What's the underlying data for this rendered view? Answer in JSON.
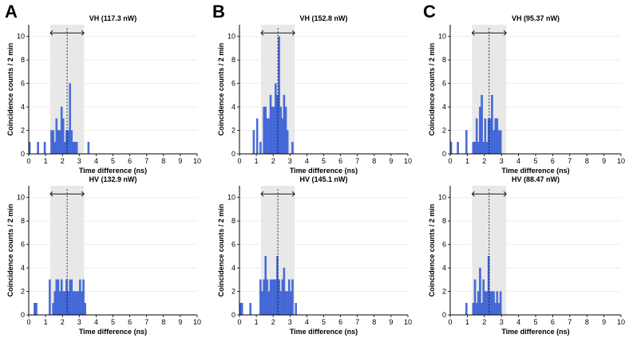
{
  "panel_letters": [
    "A",
    "B",
    "C"
  ],
  "colors": {
    "bar_fill": "#4a6fdc",
    "bar_stroke": "#2f55c8",
    "shade": "#e8e8e8",
    "grid": "#eeeeee",
    "axis": "#000000"
  },
  "chart_data": [
    {
      "type": "bar",
      "panel": "A",
      "title": "VH (117.3 nW)",
      "xlabel": "Time difference (ns)",
      "ylabel": "Coincidence counts / 2 min",
      "xlim": [
        0,
        10
      ],
      "ylim": [
        0,
        11
      ],
      "xticks": [
        "0",
        "1",
        "2",
        "3",
        "4",
        "5",
        "6",
        "7",
        "8",
        "9",
        "10"
      ],
      "yticks": [
        "0",
        "2",
        "4",
        "6",
        "8",
        "10"
      ],
      "bin_width": 0.1,
      "shaded_region": [
        1.28,
        3.28
      ],
      "mean_line": 2.28,
      "bins": [
        0.0,
        0.5,
        0.9,
        1.3,
        1.4,
        1.5,
        1.6,
        1.7,
        1.8,
        1.9,
        2.0,
        2.1,
        2.2,
        2.3,
        2.4,
        2.5,
        2.6,
        2.7,
        2.8,
        3.5
      ],
      "values": [
        1,
        1,
        1,
        2,
        2,
        1,
        3,
        2,
        2,
        4,
        3,
        1,
        2,
        2,
        6,
        2,
        1,
        1,
        1,
        1
      ]
    },
    {
      "type": "bar",
      "panel": "B",
      "title": "VH (152.8 nW)",
      "xlabel": "Time difference (ns)",
      "ylabel": "Coincidence counts / 2 min",
      "xlim": [
        0,
        10
      ],
      "ylim": [
        0,
        11
      ],
      "xticks": [
        "0",
        "1",
        "2",
        "3",
        "4",
        "5",
        "6",
        "7",
        "8",
        "9",
        "10"
      ],
      "yticks": [
        "0",
        "2",
        "4",
        "6",
        "8",
        "10"
      ],
      "bin_width": 0.1,
      "shaded_region": [
        1.28,
        3.28
      ],
      "mean_line": 2.28,
      "bins": [
        0.8,
        1.0,
        1.2,
        1.4,
        1.5,
        1.6,
        1.7,
        1.8,
        1.9,
        2.0,
        2.1,
        2.2,
        2.3,
        2.4,
        2.5,
        2.6,
        2.7,
        2.8,
        3.1
      ],
      "values": [
        2,
        3,
        1,
        4,
        4,
        3,
        3,
        5,
        4,
        4,
        6,
        5,
        10,
        4,
        3,
        5,
        4,
        2,
        1
      ]
    },
    {
      "type": "bar",
      "panel": "C",
      "title": "VH (95.37 nW)",
      "xlabel": "Time difference (ns)",
      "ylabel": "Coincidence counts / 2 min",
      "xlim": [
        0,
        10
      ],
      "ylim": [
        0,
        11
      ],
      "xticks": [
        "0",
        "1",
        "2",
        "3",
        "4",
        "5",
        "6",
        "7",
        "8",
        "9",
        "10"
      ],
      "yticks": [
        "0",
        "2",
        "4",
        "6",
        "8",
        "10"
      ],
      "bin_width": 0.1,
      "shaded_region": [
        1.28,
        3.28
      ],
      "mean_line": 2.28,
      "bins": [
        0.0,
        0.4,
        0.9,
        1.3,
        1.4,
        1.5,
        1.6,
        1.7,
        1.8,
        1.9,
        2.0,
        2.1,
        2.2,
        2.3,
        2.4,
        2.5,
        2.6,
        2.7,
        2.8,
        2.9
      ],
      "values": [
        1,
        1,
        2,
        1,
        1,
        3,
        1,
        4,
        5,
        1,
        3,
        1,
        3,
        3,
        5,
        2,
        3,
        3,
        2,
        2
      ]
    },
    {
      "type": "bar",
      "panel": "A",
      "title": "HV (132.9 nW)",
      "xlabel": "Time difference (ns)",
      "ylabel": "Coincidence counts / 2 min",
      "xlim": [
        0,
        10
      ],
      "ylim": [
        0,
        11
      ],
      "xticks": [
        "0",
        "1",
        "2",
        "3",
        "4",
        "5",
        "6",
        "7",
        "8",
        "9",
        "10"
      ],
      "yticks": [
        "0",
        "2",
        "4",
        "6",
        "8",
        "10"
      ],
      "bin_width": 0.1,
      "shaded_region": [
        1.28,
        3.28
      ],
      "mean_line": 2.28,
      "bins": [
        0.3,
        0.4,
        1.2,
        1.4,
        1.5,
        1.6,
        1.7,
        1.8,
        1.9,
        2.0,
        2.1,
        2.2,
        2.3,
        2.4,
        2.5,
        2.6,
        2.7,
        2.8,
        2.9,
        3.0,
        3.1,
        3.2,
        3.3
      ],
      "values": [
        1,
        1,
        3,
        1,
        2,
        3,
        3,
        2,
        3,
        2,
        2,
        3,
        2,
        3,
        3,
        2,
        2,
        2,
        2,
        3,
        2,
        3,
        1
      ]
    },
    {
      "type": "bar",
      "panel": "B",
      "title": "HV (145.1 nW)",
      "xlabel": "Time difference (ns)",
      "ylabel": "Coincidence counts / 2 min",
      "xlim": [
        0,
        10
      ],
      "ylim": [
        0,
        11
      ],
      "xticks": [
        "0",
        "1",
        "2",
        "3",
        "4",
        "5",
        "6",
        "7",
        "8",
        "9",
        "10"
      ],
      "yticks": [
        "0",
        "2",
        "4",
        "6",
        "8",
        "10"
      ],
      "bin_width": 0.1,
      "shaded_region": [
        1.28,
        3.28
      ],
      "mean_line": 2.28,
      "bins": [
        0.0,
        0.1,
        0.6,
        1.2,
        1.3,
        1.4,
        1.5,
        1.6,
        1.7,
        1.8,
        1.9,
        2.0,
        2.1,
        2.2,
        2.3,
        2.4,
        2.5,
        2.6,
        2.7,
        2.8,
        2.9,
        3.0,
        3.1,
        3.3
      ],
      "values": [
        1,
        1,
        1,
        3,
        2,
        3,
        5,
        3,
        2,
        3,
        3,
        3,
        3,
        5,
        3,
        2,
        3,
        4,
        2,
        2,
        3,
        2,
        3,
        1
      ]
    },
    {
      "type": "bar",
      "panel": "C",
      "title": "HV (88.47 nW)",
      "xlabel": "Time difference (ns)",
      "ylabel": "Coincidence counts / 2 min",
      "xlim": [
        0,
        10
      ],
      "ylim": [
        0,
        11
      ],
      "xticks": [
        "0",
        "1",
        "2",
        "3",
        "4",
        "5",
        "6",
        "7",
        "8",
        "9",
        "10"
      ],
      "yticks": [
        "0",
        "2",
        "4",
        "6",
        "8",
        "10"
      ],
      "bin_width": 0.1,
      "shaded_region": [
        1.28,
        3.28
      ],
      "mean_line": 2.28,
      "bins": [
        0.9,
        1.3,
        1.4,
        1.5,
        1.6,
        1.7,
        1.8,
        1.9,
        2.0,
        2.1,
        2.2,
        2.3,
        2.4,
        2.5,
        2.6,
        2.7,
        2.8,
        2.9
      ],
      "values": [
        1,
        1,
        3,
        1,
        2,
        4,
        1,
        3,
        2,
        2,
        5,
        2,
        2,
        2,
        1,
        2,
        1,
        2
      ]
    }
  ]
}
